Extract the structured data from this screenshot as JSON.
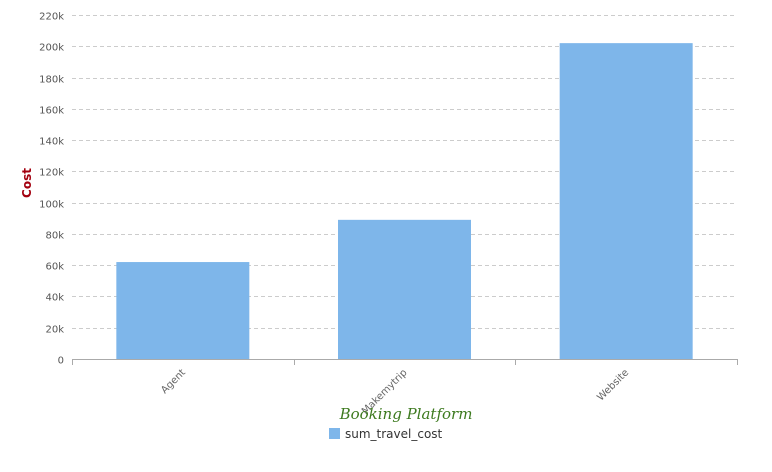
{
  "chart_data": {
    "type": "bar",
    "categories": [
      "Agent",
      "Makemytrip",
      "Website"
    ],
    "series": [
      {
        "name": "sum_travel_cost",
        "values": [
          62000,
          89000,
          202000
        ]
      }
    ],
    "xlabel": "Booking Platform",
    "ylabel": "Cost",
    "ylim": [
      0,
      220000
    ],
    "yticks": [
      0,
      20000,
      40000,
      60000,
      80000,
      100000,
      120000,
      140000,
      160000,
      180000,
      200000,
      220000
    ],
    "ytick_labels": [
      "0",
      "20k",
      "40k",
      "60k",
      "80k",
      "100k",
      "120k",
      "140k",
      "160k",
      "180k",
      "200k",
      "220k"
    ],
    "grid": true,
    "legend_position": "bottom",
    "colors": {
      "bar": "#7eb6ea",
      "ylabel": "#a3000f",
      "xlabel": "#3d7a1f",
      "grid": "#cccccc",
      "axis": "#aaaaaa"
    }
  }
}
